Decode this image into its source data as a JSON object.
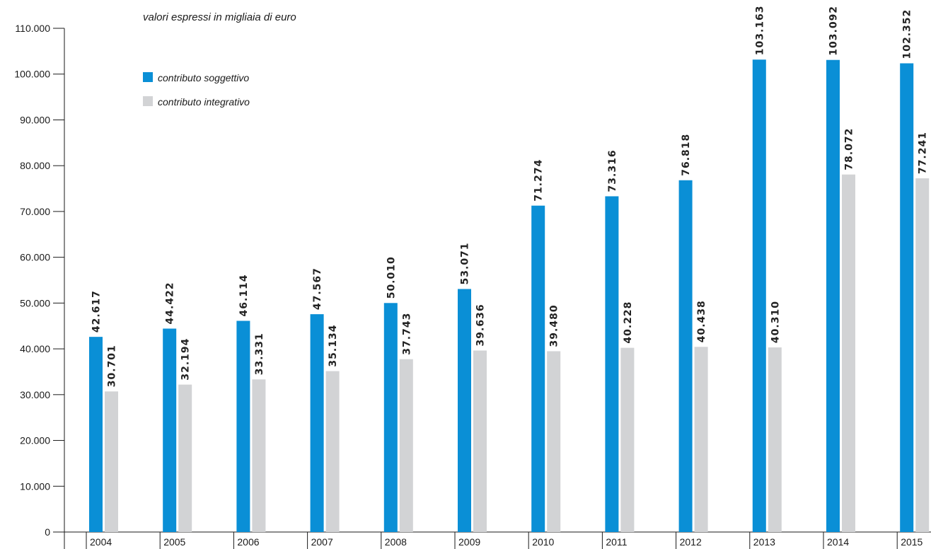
{
  "chart_data": {
    "type": "bar",
    "subtitle": "valori espressi in migliaia di euro",
    "categories": [
      "2004",
      "2005",
      "2006",
      "2007",
      "2008",
      "2009",
      "2010",
      "2011",
      "2012",
      "2013",
      "2014",
      "2015"
    ],
    "series": [
      {
        "name": "contributo soggettivo",
        "color": "#0a8fd6",
        "values": [
          42617,
          44422,
          46114,
          47567,
          50010,
          53071,
          71274,
          73316,
          76818,
          103163,
          103092,
          102352
        ],
        "labels": [
          "42.617",
          "44.422",
          "46.114",
          "47.567",
          "50.010",
          "53.071",
          "71.274",
          "73.316",
          "76.818",
          "103.163",
          "103.092",
          "102.352"
        ]
      },
      {
        "name": "contributo integrativo",
        "color": "#d2d3d5",
        "values": [
          30701,
          32194,
          33331,
          35134,
          37743,
          39636,
          39480,
          40228,
          40438,
          40310,
          78072,
          77241
        ],
        "labels": [
          "30.701",
          "32.194",
          "33.331",
          "35.134",
          "37.743",
          "39.636",
          "39.480",
          "40.228",
          "40.438",
          "40.310",
          "78.072",
          "77.241"
        ]
      }
    ],
    "yticks": [
      0,
      10000,
      20000,
      30000,
      40000,
      50000,
      60000,
      70000,
      80000,
      90000,
      100000,
      110000
    ],
    "ytick_labels": [
      "0",
      "10.000",
      "20.000",
      "30.000",
      "40.000",
      "50.000",
      "60.000",
      "70.000",
      "80.000",
      "90.000",
      "100.000",
      "110.000"
    ],
    "ylim": [
      0,
      110000
    ],
    "legend_position": "top-left",
    "grid": false
  }
}
